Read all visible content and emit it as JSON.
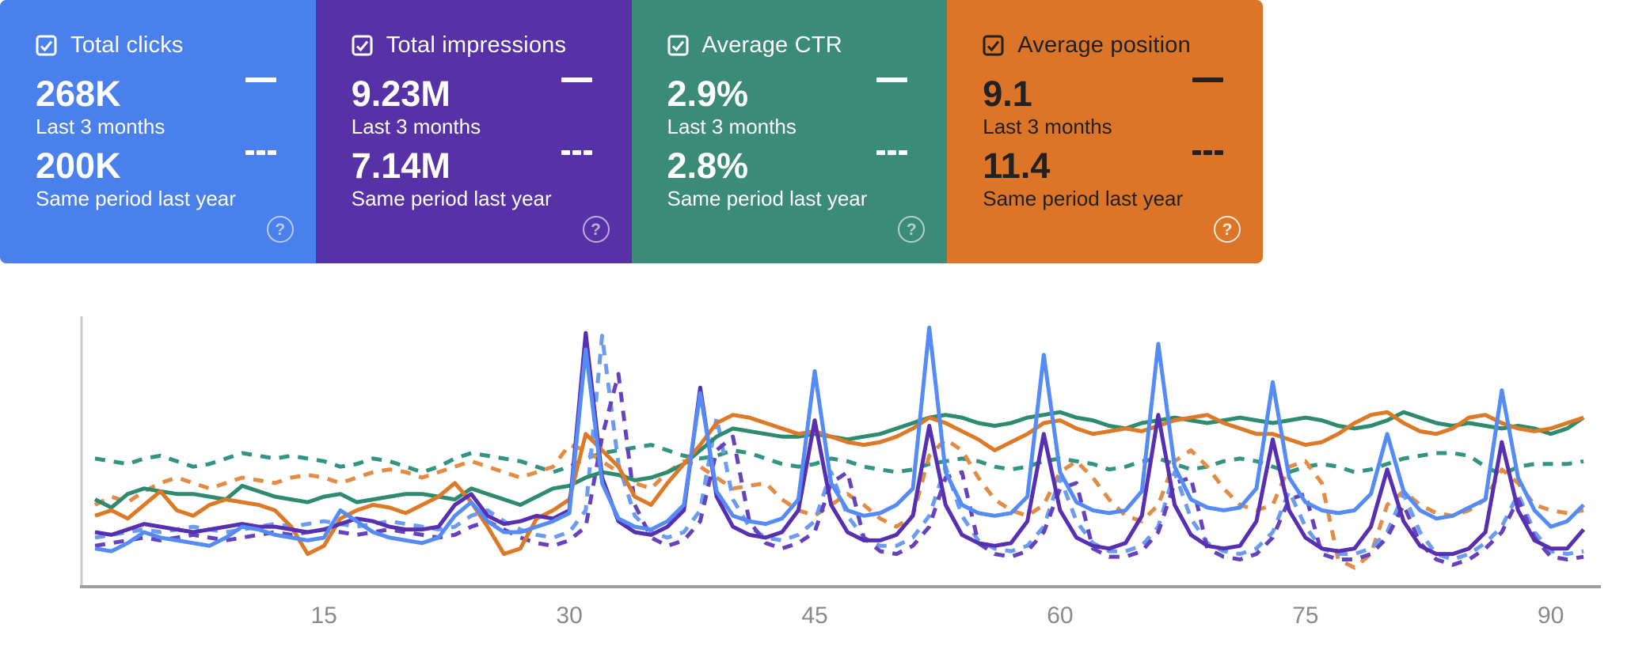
{
  "icons": {
    "help_glyph": "?"
  },
  "cards": [
    {
      "metric": "Total clicks",
      "current": "268K",
      "current_period": "Last 3 months",
      "previous": "200K",
      "previous_period": "Same period last year",
      "bg": "#4a80ec",
      "text_theme": "light"
    },
    {
      "metric": "Total impressions",
      "current": "9.23M",
      "current_period": "Last 3 months",
      "previous": "7.14M",
      "previous_period": "Same period last year",
      "bg": "#5632a6",
      "text_theme": "light"
    },
    {
      "metric": "Average CTR",
      "current": "2.9%",
      "current_period": "Last 3 months",
      "previous": "2.8%",
      "previous_period": "Same period last year",
      "bg": "#3b8b79",
      "text_theme": "light"
    },
    {
      "metric": "Average position",
      "current": "9.1",
      "current_period": "Last 3 months",
      "previous": "11.4",
      "previous_period": "Same period last year",
      "bg": "#dc7528",
      "text_theme": "dark"
    }
  ],
  "chart_data": {
    "type": "line",
    "x_unit": "day index of last 3 months",
    "x_range": [
      1,
      92
    ],
    "x_ticks": [
      15,
      30,
      45,
      60,
      75,
      90
    ],
    "y_axis": "unlabeled, each metric normalized 0-1",
    "grid": false,
    "legend_position": "in metric cards (solid = Last 3 months, dashed = Same period last year)",
    "axis_color": "#9e9e9e",
    "tick_color": "#8a8a8a",
    "series": [
      {
        "id": "ctr-previous",
        "name": "Average CTR — Same period last year",
        "color": "#339482",
        "style": "dashed",
        "values": [
          0.47,
          0.46,
          0.45,
          0.47,
          0.48,
          0.46,
          0.44,
          0.45,
          0.47,
          0.49,
          0.48,
          0.47,
          0.48,
          0.47,
          0.46,
          0.44,
          0.45,
          0.47,
          0.46,
          0.44,
          0.42,
          0.44,
          0.47,
          0.49,
          0.48,
          0.47,
          0.46,
          0.44,
          0.42,
          0.44,
          0.47,
          0.49,
          0.5,
          0.51,
          0.52,
          0.5,
          0.48,
          0.47,
          0.48,
          0.5,
          0.49,
          0.47,
          0.45,
          0.44,
          0.45,
          0.47,
          0.46,
          0.44,
          0.43,
          0.42,
          0.43,
          0.45,
          0.46,
          0.47,
          0.46,
          0.44,
          0.43,
          0.44,
          0.46,
          0.47,
          0.46,
          0.45,
          0.43,
          0.44,
          0.46,
          0.47,
          0.45,
          0.43,
          0.44,
          0.46,
          0.47,
          0.46,
          0.44,
          0.42,
          0.44,
          0.45,
          0.44,
          0.42,
          0.43,
          0.45,
          0.47,
          0.48,
          0.49,
          0.49,
          0.48,
          0.44,
          0.41,
          0.44,
          0.45,
          0.45,
          0.45,
          0.46
        ]
      },
      {
        "id": "position-previous",
        "name": "Average position — Same period last year",
        "color": "#e28c45",
        "style": "dashed",
        "values": [
          0.3,
          0.33,
          0.31,
          0.35,
          0.38,
          0.4,
          0.38,
          0.36,
          0.38,
          0.4,
          0.39,
          0.38,
          0.4,
          0.41,
          0.4,
          0.38,
          0.4,
          0.42,
          0.43,
          0.42,
          0.4,
          0.42,
          0.44,
          0.46,
          0.44,
          0.42,
          0.4,
          0.42,
          0.44,
          0.52,
          0.5,
          0.46,
          0.42,
          0.38,
          0.36,
          0.42,
          0.46,
          0.44,
          0.4,
          0.36,
          0.37,
          0.38,
          0.32,
          0.28,
          0.26,
          0.3,
          0.34,
          0.3,
          0.25,
          0.22,
          0.26,
          0.48,
          0.54,
          0.5,
          0.4,
          0.32,
          0.28,
          0.26,
          0.3,
          0.42,
          0.46,
          0.4,
          0.32,
          0.26,
          0.24,
          0.3,
          0.46,
          0.5,
          0.44,
          0.36,
          0.3,
          0.28,
          0.3,
          0.44,
          0.46,
          0.38,
          0.1,
          0.07,
          0.12,
          0.3,
          0.35,
          0.3,
          0.27,
          0.26,
          0.28,
          0.32,
          0.43,
          0.38,
          0.3,
          0.28,
          0.27,
          0.28
        ]
      },
      {
        "id": "clicks-previous",
        "name": "Total clicks — Same period last year",
        "color": "#6b9cf0",
        "style": "dashed",
        "values": [
          0.18,
          0.19,
          0.2,
          0.21,
          0.2,
          0.21,
          0.22,
          0.21,
          0.2,
          0.21,
          0.22,
          0.23,
          0.22,
          0.23,
          0.24,
          0.23,
          0.22,
          0.23,
          0.24,
          0.23,
          0.22,
          0.21,
          0.22,
          0.26,
          0.28,
          0.24,
          0.21,
          0.19,
          0.18,
          0.2,
          0.28,
          0.92,
          0.45,
          0.26,
          0.2,
          0.18,
          0.2,
          0.28,
          0.62,
          0.32,
          0.22,
          0.18,
          0.17,
          0.19,
          0.24,
          0.42,
          0.26,
          0.18,
          0.15,
          0.15,
          0.18,
          0.26,
          0.44,
          0.26,
          0.17,
          0.14,
          0.13,
          0.15,
          0.22,
          0.4,
          0.24,
          0.16,
          0.13,
          0.13,
          0.15,
          0.22,
          0.42,
          0.25,
          0.16,
          0.13,
          0.12,
          0.14,
          0.2,
          0.35,
          0.22,
          0.14,
          0.12,
          0.12,
          0.14,
          0.2,
          0.34,
          0.2,
          0.12,
          0.1,
          0.12,
          0.16,
          0.22,
          0.34,
          0.2,
          0.13,
          0.12,
          0.13
        ]
      },
      {
        "id": "impressions-previous",
        "name": "Total impressions — Same period last year",
        "color": "#6643be",
        "style": "dashed",
        "values": [
          0.15,
          0.16,
          0.17,
          0.18,
          0.17,
          0.18,
          0.19,
          0.18,
          0.17,
          0.18,
          0.19,
          0.2,
          0.19,
          0.2,
          0.21,
          0.2,
          0.19,
          0.2,
          0.21,
          0.2,
          0.19,
          0.18,
          0.19,
          0.22,
          0.24,
          0.21,
          0.18,
          0.16,
          0.15,
          0.17,
          0.22,
          0.55,
          0.78,
          0.3,
          0.18,
          0.15,
          0.17,
          0.24,
          0.5,
          0.55,
          0.24,
          0.16,
          0.14,
          0.16,
          0.2,
          0.38,
          0.42,
          0.18,
          0.13,
          0.12,
          0.15,
          0.22,
          0.4,
          0.42,
          0.16,
          0.12,
          0.11,
          0.13,
          0.2,
          0.36,
          0.38,
          0.14,
          0.11,
          0.11,
          0.13,
          0.2,
          0.38,
          0.4,
          0.14,
          0.11,
          0.1,
          0.12,
          0.18,
          0.32,
          0.34,
          0.12,
          0.1,
          0.1,
          0.12,
          0.18,
          0.3,
          0.16,
          0.1,
          0.08,
          0.1,
          0.14,
          0.2,
          0.32,
          0.18,
          0.11,
          0.1,
          0.11
        ]
      },
      {
        "id": "ctr-current",
        "name": "Average CTR — Last 3 months",
        "color": "#2e8b6f",
        "style": "solid",
        "values": [
          0.32,
          0.29,
          0.34,
          0.36,
          0.35,
          0.34,
          0.34,
          0.33,
          0.32,
          0.37,
          0.35,
          0.33,
          0.32,
          0.31,
          0.33,
          0.34,
          0.31,
          0.32,
          0.33,
          0.34,
          0.34,
          0.33,
          0.32,
          0.36,
          0.34,
          0.32,
          0.3,
          0.33,
          0.36,
          0.37,
          0.4,
          0.42,
          0.41,
          0.39,
          0.4,
          0.42,
          0.45,
          0.5,
          0.55,
          0.58,
          0.57,
          0.56,
          0.55,
          0.55,
          0.56,
          0.55,
          0.54,
          0.55,
          0.56,
          0.58,
          0.6,
          0.62,
          0.63,
          0.62,
          0.6,
          0.59,
          0.6,
          0.62,
          0.63,
          0.64,
          0.62,
          0.61,
          0.59,
          0.58,
          0.6,
          0.61,
          0.62,
          0.61,
          0.6,
          0.61,
          0.62,
          0.61,
          0.6,
          0.61,
          0.62,
          0.61,
          0.59,
          0.58,
          0.59,
          0.61,
          0.64,
          0.62,
          0.6,
          0.59,
          0.6,
          0.59,
          0.58,
          0.59,
          0.58,
          0.56,
          0.58,
          0.62
        ]
      },
      {
        "id": "position-current",
        "name": "Average position — Last 3 months",
        "color": "#dc7a28",
        "style": "solid",
        "values": [
          0.26,
          0.28,
          0.25,
          0.3,
          0.35,
          0.28,
          0.26,
          0.3,
          0.32,
          0.31,
          0.3,
          0.28,
          0.22,
          0.12,
          0.15,
          0.25,
          0.28,
          0.3,
          0.29,
          0.27,
          0.3,
          0.33,
          0.38,
          0.31,
          0.22,
          0.12,
          0.14,
          0.25,
          0.28,
          0.32,
          0.56,
          0.5,
          0.44,
          0.33,
          0.3,
          0.38,
          0.45,
          0.52,
          0.6,
          0.63,
          0.62,
          0.6,
          0.58,
          0.56,
          0.57,
          0.55,
          0.53,
          0.52,
          0.53,
          0.55,
          0.58,
          0.62,
          0.6,
          0.57,
          0.54,
          0.5,
          0.53,
          0.56,
          0.6,
          0.61,
          0.58,
          0.56,
          0.57,
          0.58,
          0.57,
          0.59,
          0.61,
          0.62,
          0.63,
          0.6,
          0.58,
          0.56,
          0.56,
          0.54,
          0.52,
          0.53,
          0.56,
          0.6,
          0.63,
          0.64,
          0.6,
          0.57,
          0.56,
          0.58,
          0.62,
          0.63,
          0.6,
          0.58,
          0.57,
          0.58,
          0.6,
          0.62
        ]
      },
      {
        "id": "impressions-current",
        "name": "Total impressions — Last 3 months",
        "color": "#5630b0",
        "style": "solid",
        "values": [
          0.2,
          0.19,
          0.21,
          0.23,
          0.22,
          0.21,
          0.2,
          0.21,
          0.22,
          0.23,
          0.22,
          0.22,
          0.21,
          0.2,
          0.21,
          0.23,
          0.25,
          0.24,
          0.22,
          0.21,
          0.21,
          0.22,
          0.3,
          0.34,
          0.26,
          0.23,
          0.24,
          0.26,
          0.25,
          0.28,
          0.93,
          0.4,
          0.24,
          0.2,
          0.19,
          0.22,
          0.28,
          0.73,
          0.33,
          0.22,
          0.19,
          0.18,
          0.2,
          0.28,
          0.61,
          0.3,
          0.2,
          0.17,
          0.17,
          0.19,
          0.26,
          0.59,
          0.3,
          0.19,
          0.16,
          0.15,
          0.16,
          0.24,
          0.56,
          0.28,
          0.18,
          0.15,
          0.14,
          0.16,
          0.26,
          0.63,
          0.3,
          0.19,
          0.15,
          0.14,
          0.15,
          0.24,
          0.54,
          0.28,
          0.18,
          0.14,
          0.13,
          0.14,
          0.22,
          0.43,
          0.24,
          0.15,
          0.12,
          0.12,
          0.14,
          0.2,
          0.53,
          0.28,
          0.17,
          0.14,
          0.14,
          0.21
        ]
      },
      {
        "id": "clicks-current",
        "name": "Total clicks — Last 3 months",
        "color": "#548bf4",
        "style": "solid",
        "values": [
          0.14,
          0.13,
          0.16,
          0.2,
          0.18,
          0.17,
          0.16,
          0.15,
          0.18,
          0.22,
          0.21,
          0.19,
          0.18,
          0.17,
          0.18,
          0.28,
          0.24,
          0.2,
          0.18,
          0.17,
          0.16,
          0.18,
          0.26,
          0.31,
          0.24,
          0.2,
          0.2,
          0.22,
          0.24,
          0.27,
          0.87,
          0.38,
          0.25,
          0.22,
          0.21,
          0.24,
          0.3,
          0.71,
          0.35,
          0.26,
          0.24,
          0.23,
          0.25,
          0.32,
          0.79,
          0.38,
          0.28,
          0.26,
          0.27,
          0.3,
          0.36,
          0.95,
          0.42,
          0.3,
          0.27,
          0.26,
          0.27,
          0.33,
          0.85,
          0.42,
          0.31,
          0.28,
          0.27,
          0.28,
          0.35,
          0.89,
          0.44,
          0.32,
          0.29,
          0.28,
          0.29,
          0.36,
          0.75,
          0.4,
          0.31,
          0.28,
          0.27,
          0.28,
          0.34,
          0.56,
          0.35,
          0.28,
          0.25,
          0.26,
          0.29,
          0.32,
          0.72,
          0.4,
          0.28,
          0.22,
          0.24,
          0.3
        ]
      }
    ]
  }
}
